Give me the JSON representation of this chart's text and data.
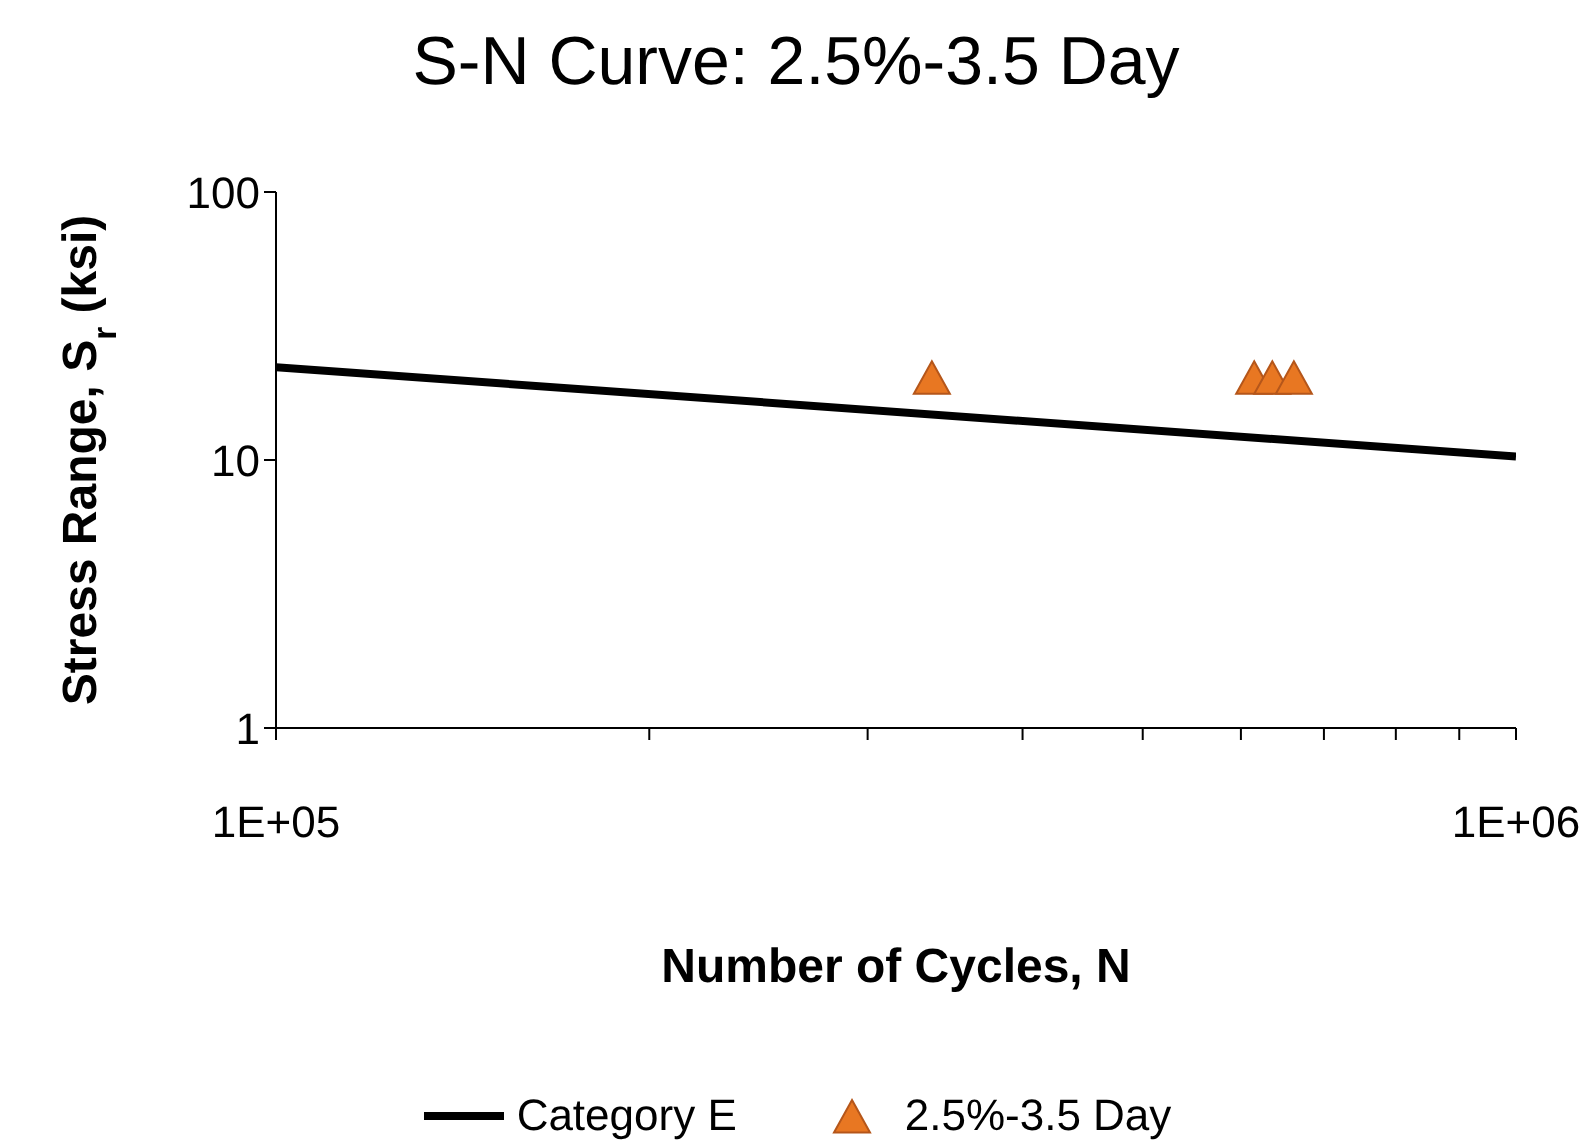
{
  "chart_data": {
    "type": "scatter",
    "title": "S-N Curve: 2.5%-3.5 Day",
    "xlabel": "Number of Cycles, N",
    "ylabel": "Stress Range, S$_{r}$ (ksi)",
    "log": "xy",
    "legend": "bottom",
    "xlim": [
      100000,
      1000000
    ],
    "ylim": [
      1,
      100
    ],
    "xticks": [
      {
        "value": 100000,
        "label": "1E+05"
      },
      {
        "value": 200000,
        "label": null
      },
      {
        "value": 300000,
        "label": null
      },
      {
        "value": 400000,
        "label": null
      },
      {
        "value": 500000,
        "label": null
      },
      {
        "value": 600000,
        "label": null
      },
      {
        "value": 700000,
        "label": null
      },
      {
        "value": 800000,
        "label": null
      },
      {
        "value": 900000,
        "label": null
      },
      {
        "value": 1000000,
        "label": "1E+06"
      }
    ],
    "yticks": [
      1,
      10,
      100
    ],
    "series": [
      {
        "name": "Category E",
        "type": "line",
        "color": "#000000",
        "marker": "none",
        "line_style": "solid",
        "x": [
          100000,
          1000000
        ],
        "values": [
          22.2,
          10.3
        ]
      },
      {
        "name": "2.5%-3.5 Day",
        "color": "#e87722",
        "marker": "triangle",
        "x": [
          338000,
          615000,
          636000,
          662000
        ],
        "values": [
          20,
          20,
          20,
          20
        ]
      }
    ]
  }
}
